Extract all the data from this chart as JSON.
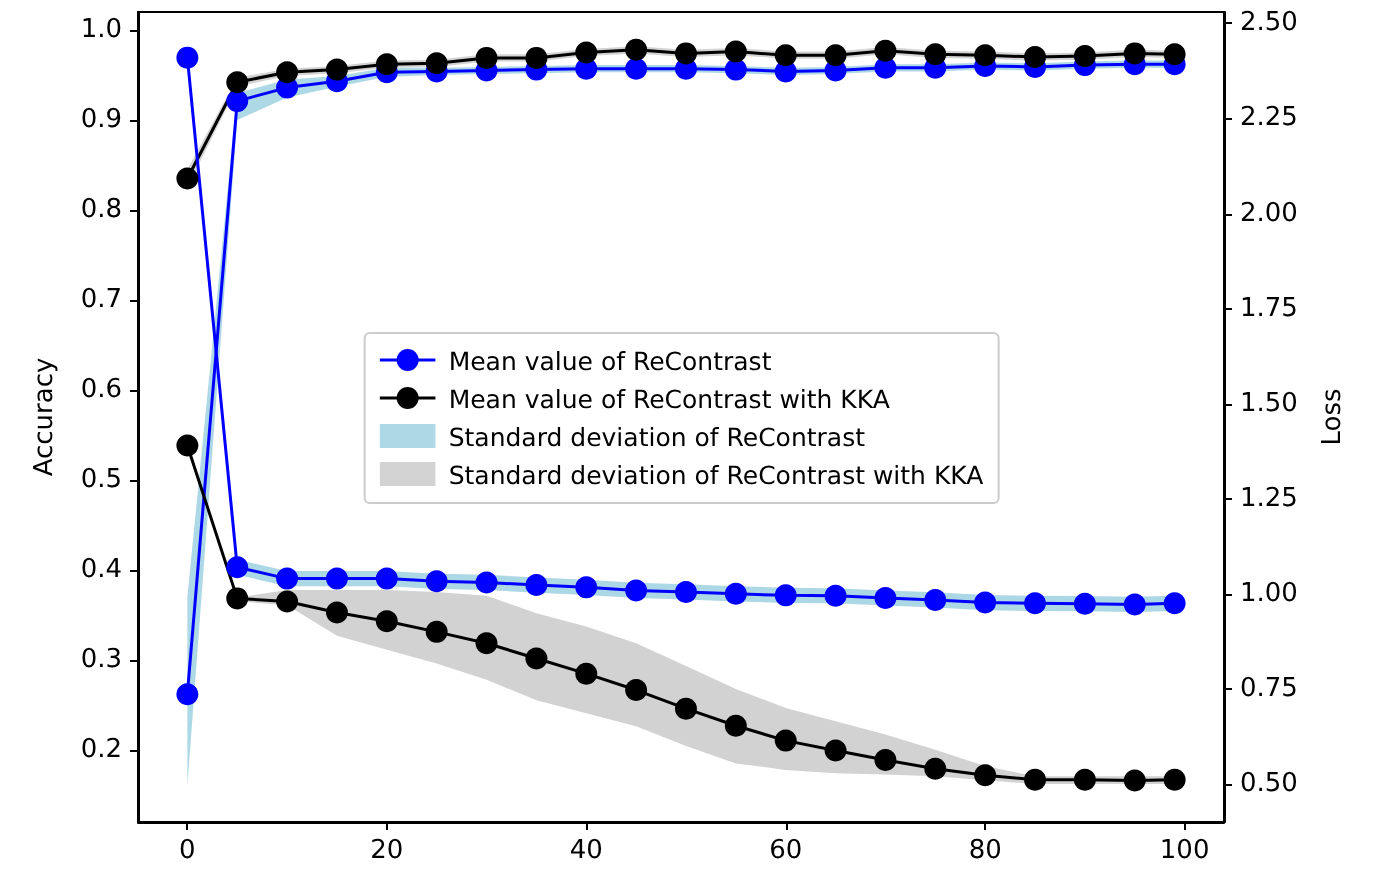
{
  "chart_data": {
    "type": "line",
    "ylabel": "Accuracy",
    "y2label": "Loss",
    "x": [
      0,
      5,
      10,
      15,
      20,
      25,
      30,
      35,
      40,
      45,
      50,
      55,
      60,
      65,
      70,
      75,
      80,
      85,
      90,
      95,
      99
    ],
    "xlim": [
      -4.95,
      103.95
    ],
    "xticks": [
      0,
      20,
      40,
      60,
      80,
      100
    ],
    "ylim": [
      0.12,
      1.02
    ],
    "yticks": [
      {
        "value": 0.2,
        "label": "0.2"
      },
      {
        "value": 0.3,
        "label": "0.3"
      },
      {
        "value": 0.4,
        "label": "0.4"
      },
      {
        "value": 0.5,
        "label": "0.5"
      },
      {
        "value": 0.6,
        "label": "0.6"
      },
      {
        "value": 0.7,
        "label": "0.7"
      },
      {
        "value": 0.8,
        "label": "0.8"
      },
      {
        "value": 0.9,
        "label": "0.9"
      },
      {
        "value": 1.0,
        "label": "1.0"
      }
    ],
    "y2lim": [
      0.4,
      2.53
    ],
    "y2ticks": [
      {
        "value": 0.5,
        "label": "0.50"
      },
      {
        "value": 0.75,
        "label": "0.75"
      },
      {
        "value": 1.0,
        "label": "1.00"
      },
      {
        "value": 1.25,
        "label": "1.25"
      },
      {
        "value": 1.5,
        "label": "1.50"
      },
      {
        "value": 1.75,
        "label": "1.75"
      },
      {
        "value": 2.0,
        "label": "2.00"
      },
      {
        "value": 2.25,
        "label": "2.25"
      },
      {
        "value": 2.5,
        "label": "2.50"
      }
    ],
    "grid": false,
    "legend": "center",
    "marker": "circle",
    "line_style": "solid",
    "annotations": [
      "Standard deviation of ReContrast",
      "Standard deviation of ReContrast with KKA"
    ],
    "series": [
      {
        "name": "Mean value of ReContrast",
        "color": "#0000ff",
        "values": [
          0.262,
          0.921,
          0.936,
          0.943,
          0.953,
          0.954,
          0.955,
          0.956,
          0.957,
          0.957,
          0.957,
          0.956,
          0.954,
          0.955,
          0.958,
          0.958,
          0.96,
          0.959,
          0.961,
          0.962,
          0.962
        ],
        "lower": [
          0.16,
          0.9,
          0.925,
          0.937,
          0.948,
          0.95,
          0.951,
          0.952,
          0.953,
          0.953,
          0.953,
          0.952,
          0.95,
          0.951,
          0.954,
          0.954,
          0.956,
          0.955,
          0.957,
          0.958,
          0.958
        ],
        "upper": [
          0.37,
          0.93,
          0.945,
          0.949,
          0.958,
          0.958,
          0.959,
          0.96,
          0.961,
          0.961,
          0.961,
          0.96,
          0.958,
          0.959,
          0.962,
          0.962,
          0.964,
          0.963,
          0.965,
          0.966,
          0.966
        ]
      },
      {
        "name": "Mean value of ReContrast with KKA",
        "color": "#000000",
        "values": [
          0.835,
          0.942,
          0.953,
          0.956,
          0.962,
          0.963,
          0.969,
          0.969,
          0.975,
          0.978,
          0.974,
          0.976,
          0.972,
          0.972,
          0.977,
          0.973,
          0.972,
          0.97,
          0.971,
          0.974,
          0.973
        ],
        "lower": [
          0.825,
          0.937,
          0.949,
          0.952,
          0.958,
          0.959,
          0.965,
          0.965,
          0.971,
          0.974,
          0.97,
          0.972,
          0.968,
          0.968,
          0.973,
          0.969,
          0.968,
          0.966,
          0.967,
          0.97,
          0.969
        ],
        "upper": [
          0.845,
          0.947,
          0.957,
          0.96,
          0.966,
          0.967,
          0.973,
          0.973,
          0.979,
          0.982,
          0.978,
          0.98,
          0.976,
          0.976,
          0.981,
          0.977,
          0.976,
          0.974,
          0.975,
          0.978,
          0.977
        ]
      },
      {
        "axis": "y2",
        "color": "#0000ff",
        "values": [
          2.41,
          1.07,
          1.04,
          1.04,
          1.04,
          1.033,
          1.03,
          1.023,
          1.017,
          1.009,
          1.005,
          1.0,
          0.996,
          0.995,
          0.989,
          0.984,
          0.977,
          0.975,
          0.974,
          0.972,
          0.975
        ],
        "lower": [
          2.39,
          1.05,
          1.02,
          1.02,
          1.02,
          1.013,
          1.01,
          1.003,
          0.997,
          0.989,
          0.985,
          0.98,
          0.976,
          0.975,
          0.969,
          0.964,
          0.957,
          0.955,
          0.954,
          0.952,
          0.955
        ],
        "upper": [
          2.43,
          1.09,
          1.06,
          1.06,
          1.06,
          1.053,
          1.05,
          1.043,
          1.037,
          1.029,
          1.025,
          1.02,
          1.016,
          1.015,
          1.009,
          1.004,
          0.997,
          0.995,
          0.994,
          0.992,
          0.995
        ]
      },
      {
        "axis": "y2",
        "color": "#000000",
        "values": [
          1.39,
          0.988,
          0.98,
          0.951,
          0.928,
          0.9,
          0.87,
          0.83,
          0.79,
          0.747,
          0.698,
          0.653,
          0.614,
          0.588,
          0.563,
          0.54,
          0.523,
          0.511,
          0.511,
          0.509,
          0.511
        ],
        "lower": [
          1.38,
          0.98,
          0.97,
          0.89,
          0.853,
          0.817,
          0.774,
          0.72,
          0.686,
          0.652,
          0.6,
          0.554,
          0.537,
          0.528,
          0.525,
          0.52,
          0.51,
          0.5,
          0.5,
          0.5,
          0.5
        ],
        "upper": [
          1.4,
          0.99,
          1.01,
          1.01,
          1.01,
          1.005,
          0.995,
          0.949,
          0.914,
          0.87,
          0.81,
          0.75,
          0.7,
          0.665,
          0.63,
          0.59,
          0.547,
          0.52,
          0.52,
          0.52,
          0.52
        ]
      }
    ]
  }
}
